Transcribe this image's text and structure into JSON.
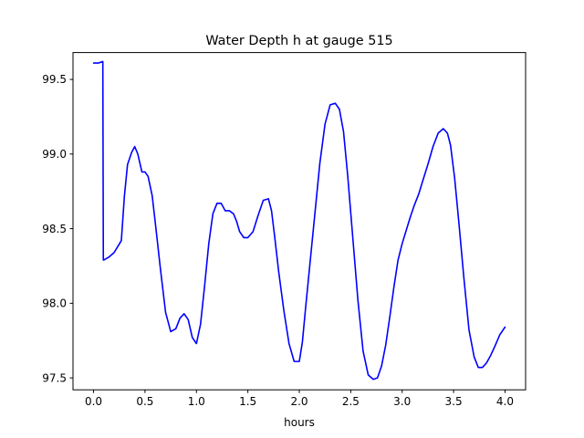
{
  "chart_data": {
    "type": "line",
    "title": "Water Depth h at gauge 515",
    "xlabel": "hours",
    "ylabel": "",
    "xlim": [
      -0.2,
      4.2
    ],
    "ylim": [
      97.42,
      99.68
    ],
    "xticks": [
      0.0,
      0.5,
      1.0,
      1.5,
      2.0,
      2.5,
      3.0,
      3.5,
      4.0
    ],
    "xtick_labels": [
      "0.0",
      "0.5",
      "1.0",
      "1.5",
      "2.0",
      "2.5",
      "3.0",
      "3.5",
      "4.0"
    ],
    "yticks": [
      97.5,
      98.0,
      98.5,
      99.0,
      99.5
    ],
    "ytick_labels": [
      "97.5",
      "98.0",
      "98.5",
      "99.0",
      "99.5"
    ],
    "grid": false,
    "series": [
      {
        "color": "#0000ff",
        "x": [
          0.0,
          0.05,
          0.09,
          0.095,
          0.1,
          0.15,
          0.2,
          0.27,
          0.3,
          0.33,
          0.37,
          0.4,
          0.43,
          0.47,
          0.5,
          0.53,
          0.57,
          0.6,
          0.65,
          0.7,
          0.75,
          0.8,
          0.84,
          0.88,
          0.92,
          0.96,
          1.0,
          1.04,
          1.08,
          1.12,
          1.16,
          1.2,
          1.24,
          1.28,
          1.32,
          1.36,
          1.39,
          1.42,
          1.46,
          1.5,
          1.55,
          1.6,
          1.65,
          1.7,
          1.73,
          1.76,
          1.8,
          1.85,
          1.9,
          1.95,
          2.0,
          2.03,
          2.06,
          2.1,
          2.15,
          2.2,
          2.25,
          2.3,
          2.35,
          2.39,
          2.43,
          2.47,
          2.52,
          2.57,
          2.62,
          2.67,
          2.72,
          2.76,
          2.8,
          2.84,
          2.88,
          2.92,
          2.96,
          3.0,
          3.04,
          3.08,
          3.12,
          3.16,
          3.2,
          3.25,
          3.3,
          3.35,
          3.4,
          3.44,
          3.47,
          3.51,
          3.55,
          3.6,
          3.65,
          3.7,
          3.74,
          3.78,
          3.82,
          3.86,
          3.9,
          3.95,
          4.0
        ],
        "y": [
          99.61,
          99.61,
          99.62,
          98.29,
          98.29,
          98.31,
          98.34,
          98.42,
          98.72,
          98.93,
          99.01,
          99.05,
          99.0,
          98.88,
          98.88,
          98.85,
          98.72,
          98.54,
          98.23,
          97.94,
          97.81,
          97.83,
          97.9,
          97.93,
          97.89,
          97.77,
          97.73,
          97.86,
          98.12,
          98.4,
          98.6,
          98.67,
          98.67,
          98.62,
          98.62,
          98.6,
          98.55,
          98.48,
          98.44,
          98.44,
          98.48,
          98.59,
          98.69,
          98.7,
          98.62,
          98.45,
          98.21,
          97.95,
          97.73,
          97.61,
          97.61,
          97.74,
          97.96,
          98.24,
          98.59,
          98.94,
          99.2,
          99.33,
          99.34,
          99.3,
          99.15,
          98.86,
          98.44,
          98.02,
          97.68,
          97.52,
          97.49,
          97.5,
          97.58,
          97.72,
          97.91,
          98.11,
          98.29,
          98.4,
          98.49,
          98.58,
          98.66,
          98.73,
          98.82,
          98.93,
          99.05,
          99.14,
          99.17,
          99.14,
          99.06,
          98.84,
          98.55,
          98.17,
          97.82,
          97.64,
          97.57,
          97.57,
          97.6,
          97.65,
          97.71,
          97.79,
          97.84
        ]
      }
    ]
  }
}
